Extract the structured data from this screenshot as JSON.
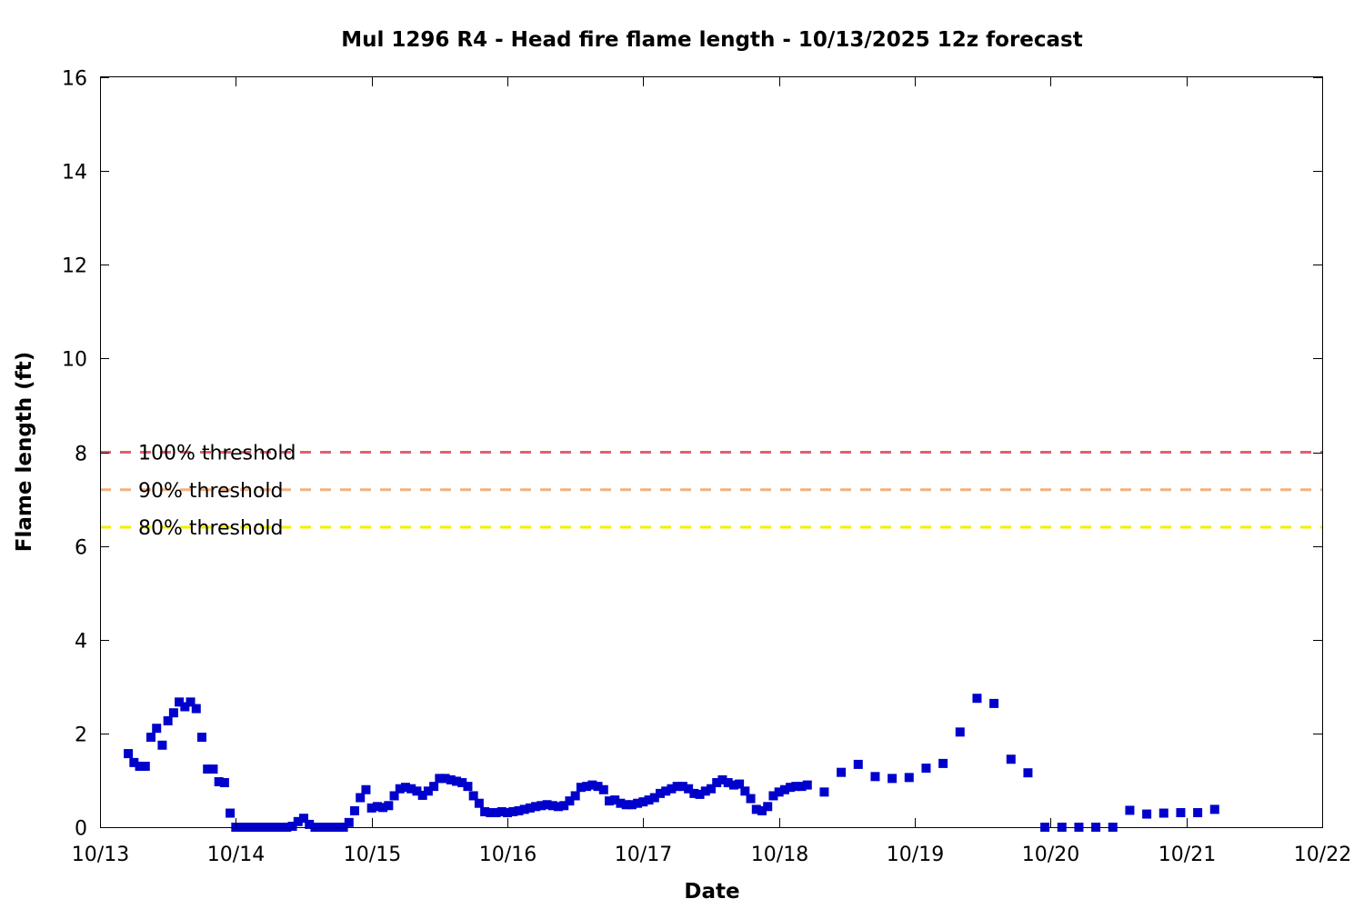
{
  "chart_data": {
    "type": "scatter",
    "title": "Mul 1296 R4 - Head fire flame length - 10/13/2025 12z forecast",
    "xlabel": "Date",
    "ylabel": "Flame length (ft)",
    "x_start": "10/13",
    "x_ticks": [
      "10/13",
      "10/14",
      "10/15",
      "10/16",
      "10/17",
      "10/18",
      "10/19",
      "10/20",
      "10/21",
      "10/22"
    ],
    "y_ticks": [
      "0",
      "2",
      "4",
      "6",
      "8",
      "10",
      "12",
      "14",
      "16"
    ],
    "xlim_days": [
      0,
      9
    ],
    "ylim": [
      0,
      16
    ],
    "grid": false,
    "marker_color": "#0000cc",
    "thresholds": [
      {
        "label": "100% threshold",
        "value": 8.0,
        "color": "#e06070"
      },
      {
        "label": "90% threshold",
        "value": 7.2,
        "color": "#f5b080"
      },
      {
        "label": "80% threshold",
        "value": 6.4,
        "color": "#f0f000"
      }
    ],
    "series": [
      {
        "points": [
          [
            "10/13 05:00",
            1.57
          ],
          [
            "10/13 06:00",
            1.38
          ],
          [
            "10/13 07:00",
            1.3
          ],
          [
            "10/13 08:00",
            1.3
          ],
          [
            "10/13 09:00",
            1.92
          ],
          [
            "10/13 10:00",
            2.11
          ],
          [
            "10/13 11:00",
            1.75
          ],
          [
            "10/13 12:00",
            2.27
          ],
          [
            "10/13 13:00",
            2.44
          ],
          [
            "10/13 14:00",
            2.67
          ],
          [
            "10/13 15:00",
            2.57
          ],
          [
            "10/13 16:00",
            2.67
          ],
          [
            "10/13 17:00",
            2.53
          ],
          [
            "10/13 18:00",
            1.92
          ],
          [
            "10/13 19:00",
            1.24
          ],
          [
            "10/13 20:00",
            1.24
          ],
          [
            "10/13 21:00",
            0.97
          ],
          [
            "10/13 22:00",
            0.95
          ],
          [
            "10/13 23:00",
            0.3
          ],
          [
            "10/14 00:00",
            0.0
          ],
          [
            "10/14 01:00",
            0.0
          ],
          [
            "10/14 02:00",
            0.0
          ],
          [
            "10/14 03:00",
            0.0
          ],
          [
            "10/14 04:00",
            0.0
          ],
          [
            "10/14 05:00",
            0.0
          ],
          [
            "10/14 06:00",
            0.0
          ],
          [
            "10/14 07:00",
            0.0
          ],
          [
            "10/14 08:00",
            0.0
          ],
          [
            "10/14 09:00",
            0.0
          ],
          [
            "10/14 10:00",
            0.02
          ],
          [
            "10/14 11:00",
            0.12
          ],
          [
            "10/14 12:00",
            0.19
          ],
          [
            "10/14 13:00",
            0.06
          ],
          [
            "10/14 14:00",
            0.0
          ],
          [
            "10/14 15:00",
            0.0
          ],
          [
            "10/14 16:00",
            0.0
          ],
          [
            "10/14 17:00",
            0.0
          ],
          [
            "10/14 18:00",
            0.0
          ],
          [
            "10/14 19:00",
            0.0
          ],
          [
            "10/14 20:00",
            0.1
          ],
          [
            "10/14 21:00",
            0.35
          ],
          [
            "10/14 22:00",
            0.63
          ],
          [
            "10/14 23:00",
            0.8
          ],
          [
            "10/15 00:00",
            0.41
          ],
          [
            "10/15 01:00",
            0.44
          ],
          [
            "10/15 02:00",
            0.42
          ],
          [
            "10/15 03:00",
            0.46
          ],
          [
            "10/15 04:00",
            0.67
          ],
          [
            "10/15 05:00",
            0.82
          ],
          [
            "10/15 06:00",
            0.85
          ],
          [
            "10/15 07:00",
            0.82
          ],
          [
            "10/15 08:00",
            0.77
          ],
          [
            "10/15 09:00",
            0.68
          ],
          [
            "10/15 10:00",
            0.77
          ],
          [
            "10/15 11:00",
            0.87
          ],
          [
            "10/15 12:00",
            1.04
          ],
          [
            "10/15 13:00",
            1.04
          ],
          [
            "10/15 14:00",
            1.01
          ],
          [
            "10/15 15:00",
            0.98
          ],
          [
            "10/15 16:00",
            0.95
          ],
          [
            "10/15 17:00",
            0.87
          ],
          [
            "10/15 18:00",
            0.67
          ],
          [
            "10/15 19:00",
            0.51
          ],
          [
            "10/15 20:00",
            0.33
          ],
          [
            "10/15 21:00",
            0.31
          ],
          [
            "10/15 22:00",
            0.31
          ],
          [
            "10/15 23:00",
            0.33
          ],
          [
            "10/16 00:00",
            0.31
          ],
          [
            "10/16 01:00",
            0.33
          ],
          [
            "10/16 02:00",
            0.35
          ],
          [
            "10/16 03:00",
            0.38
          ],
          [
            "10/16 04:00",
            0.41
          ],
          [
            "10/16 05:00",
            0.44
          ],
          [
            "10/16 06:00",
            0.46
          ],
          [
            "10/16 07:00",
            0.48
          ],
          [
            "10/16 08:00",
            0.46
          ],
          [
            "10/16 09:00",
            0.44
          ],
          [
            "10/16 10:00",
            0.46
          ],
          [
            "10/16 11:00",
            0.56
          ],
          [
            "10/16 12:00",
            0.67
          ],
          [
            "10/16 13:00",
            0.85
          ],
          [
            "10/16 14:00",
            0.87
          ],
          [
            "10/16 15:00",
            0.9
          ],
          [
            "10/16 16:00",
            0.87
          ],
          [
            "10/16 17:00",
            0.8
          ],
          [
            "10/16 18:00",
            0.56
          ],
          [
            "10/16 19:00",
            0.58
          ],
          [
            "10/16 20:00",
            0.51
          ],
          [
            "10/16 21:00",
            0.48
          ],
          [
            "10/16 22:00",
            0.48
          ],
          [
            "10/16 23:00",
            0.51
          ],
          [
            "10/17 00:00",
            0.54
          ],
          [
            "10/17 01:00",
            0.58
          ],
          [
            "10/17 02:00",
            0.63
          ],
          [
            "10/17 03:00",
            0.72
          ],
          [
            "10/17 04:00",
            0.77
          ],
          [
            "10/17 05:00",
            0.82
          ],
          [
            "10/17 06:00",
            0.87
          ],
          [
            "10/17 07:00",
            0.87
          ],
          [
            "10/17 08:00",
            0.82
          ],
          [
            "10/17 09:00",
            0.72
          ],
          [
            "10/17 10:00",
            0.7
          ],
          [
            "10/17 11:00",
            0.77
          ],
          [
            "10/17 12:00",
            0.82
          ],
          [
            "10/17 13:00",
            0.95
          ],
          [
            "10/17 14:00",
            1.01
          ],
          [
            "10/17 15:00",
            0.95
          ],
          [
            "10/17 16:00",
            0.9
          ],
          [
            "10/17 17:00",
            0.92
          ],
          [
            "10/17 18:00",
            0.77
          ],
          [
            "10/17 19:00",
            0.61
          ],
          [
            "10/17 20:00",
            0.38
          ],
          [
            "10/17 21:00",
            0.35
          ],
          [
            "10/17 22:00",
            0.44
          ],
          [
            "10/17 23:00",
            0.67
          ],
          [
            "10/18 00:00",
            0.75
          ],
          [
            "10/18 01:00",
            0.8
          ],
          [
            "10/18 02:00",
            0.85
          ],
          [
            "10/18 03:00",
            0.87
          ],
          [
            "10/18 04:00",
            0.87
          ],
          [
            "10/18 05:00",
            0.9
          ],
          [
            "10/18 08:00",
            0.75
          ],
          [
            "10/18 11:00",
            1.17
          ],
          [
            "10/18 14:00",
            1.34
          ],
          [
            "10/18 17:00",
            1.08
          ],
          [
            "10/18 20:00",
            1.04
          ],
          [
            "10/18 23:00",
            1.06
          ],
          [
            "10/19 02:00",
            1.26
          ],
          [
            "10/19 05:00",
            1.36
          ],
          [
            "10/19 08:00",
            2.03
          ],
          [
            "10/19 11:00",
            2.75
          ],
          [
            "10/19 14:00",
            2.64
          ],
          [
            "10/19 17:00",
            1.45
          ],
          [
            "10/19 20:00",
            1.16
          ],
          [
            "10/19 23:00",
            0.0
          ],
          [
            "10/20 02:00",
            0.0
          ],
          [
            "10/20 05:00",
            0.0
          ],
          [
            "10/20 08:00",
            0.0
          ],
          [
            "10/20 11:00",
            0.0
          ],
          [
            "10/20 14:00",
            0.36
          ],
          [
            "10/20 17:00",
            0.28
          ],
          [
            "10/20 20:00",
            0.3
          ],
          [
            "10/20 23:00",
            0.31
          ],
          [
            "10/21 02:00",
            0.31
          ],
          [
            "10/21 05:00",
            0.38
          ]
        ]
      }
    ]
  }
}
